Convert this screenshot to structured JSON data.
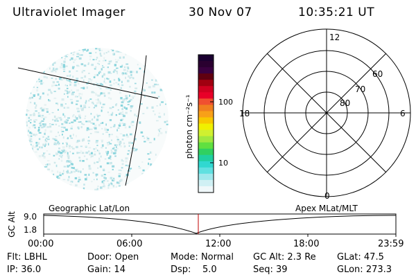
{
  "header": {
    "instrument": "Ultraviolet Imager",
    "date": "30 Nov 07",
    "time": "10:35:21 UT"
  },
  "colorbar": {
    "unit_label": "photon cm⁻²s⁻¹",
    "tick_labels": [
      "100",
      "10"
    ],
    "colors_top_to_bottom": [
      "#1a0030",
      "#2a0030",
      "#3a0040",
      "#600010",
      "#a00010",
      "#d00020",
      "#e80028",
      "#f05030",
      "#f08020",
      "#f8a018",
      "#f8c800",
      "#f0f000",
      "#d0f030",
      "#a0e840",
      "#60e040",
      "#30d060",
      "#20d0a0",
      "#30d8d0",
      "#60e0e0",
      "#a0e8ec",
      "#d0f0f4",
      "#f0f8fa"
    ]
  },
  "polar_plot": {
    "mlt_labels": {
      "top": "12",
      "left": "18",
      "right": "6",
      "bottom": "0"
    },
    "lat_labels": [
      "60",
      "70",
      "80"
    ]
  },
  "timeline": {
    "left_title": "Geographic Lat/Lon",
    "right_title": "Apex MLat/MLT",
    "y_axis_label": "GC Alt",
    "y_ticks": [
      "9.0",
      "1.8"
    ],
    "x_ticks": [
      "00:00",
      "06:00",
      "12:00",
      "18:00",
      "23:59"
    ],
    "current_time_marker_color": "#c00000"
  },
  "status": {
    "row1": [
      {
        "label": "Flt:",
        "value": "LBHL"
      },
      {
        "label": "Door:",
        "value": "Open"
      },
      {
        "label": "Mode:",
        "value": "Normal"
      },
      {
        "label": "GC Alt:",
        "value": "2.3 Re"
      },
      {
        "label": "GLat:",
        "value": "47.5"
      }
    ],
    "row2": [
      {
        "label": "IP:",
        "value": "36.0"
      },
      {
        "label": "Gain:",
        "value": "14"
      },
      {
        "label": "Dsp:",
        "value": "5.0"
      },
      {
        "label": "Seq:",
        "value": "39"
      },
      {
        "label": "GLon:",
        "value": "273.3"
      }
    ]
  }
}
